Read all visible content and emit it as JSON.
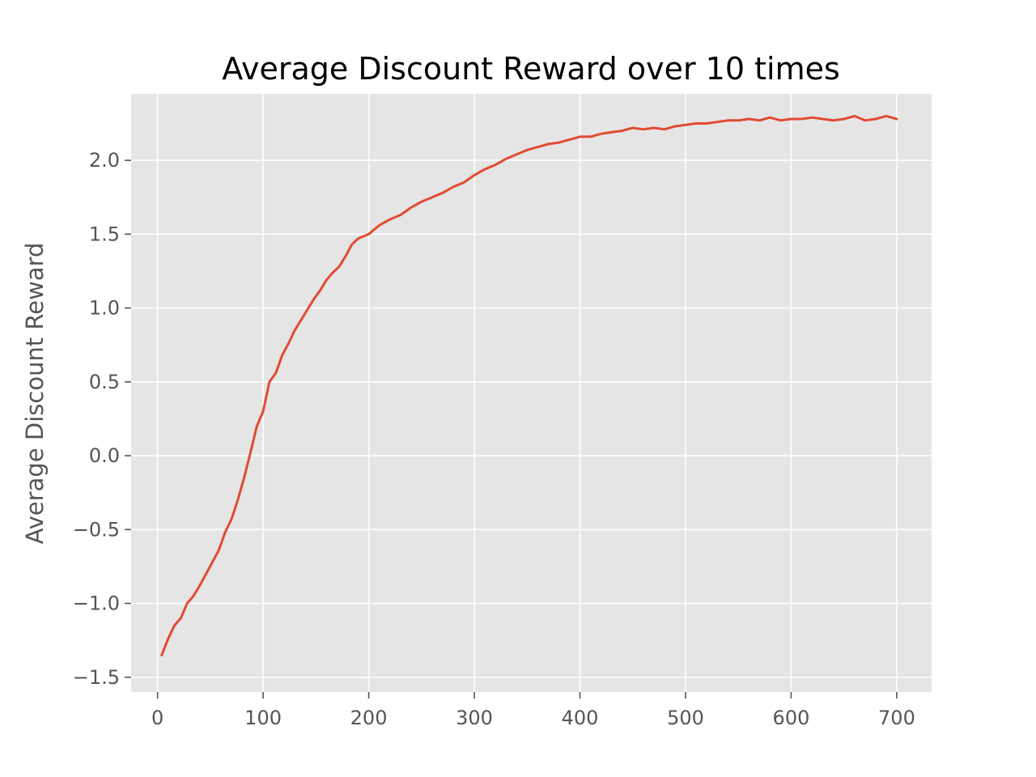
{
  "chart_data": {
    "type": "line",
    "title": "Average Discount Reward over 10 times",
    "xlabel": "",
    "ylabel": "Average Discount Reward",
    "xlim": [
      -25,
      733
    ],
    "ylim": [
      -1.6,
      2.45
    ],
    "grid": true,
    "legend": "none",
    "x_ticks": [
      0,
      100,
      200,
      300,
      400,
      500,
      600,
      700
    ],
    "x_tick_labels": [
      "0",
      "100",
      "200",
      "300",
      "400",
      "500",
      "600",
      "700"
    ],
    "y_ticks": [
      -1.5,
      -1.0,
      -0.5,
      0.0,
      0.5,
      1.0,
      1.5,
      2.0
    ],
    "y_tick_labels": [
      "−1.5",
      "−1.0",
      "−0.5",
      "0.0",
      "0.5",
      "1.0",
      "1.5",
      "2.0"
    ],
    "colors": {
      "line": "#E24A33",
      "plot_bg": "#E5E5E5",
      "grid": "#FFFFFF",
      "tick_text": "#555555"
    },
    "series": [
      {
        "x": [
          4,
          10,
          16,
          22,
          28,
          34,
          40,
          46,
          52,
          58,
          64,
          70,
          76,
          82,
          88,
          94,
          100,
          106,
          112,
          118,
          124,
          130,
          136,
          142,
          148,
          154,
          160,
          166,
          172,
          178,
          184,
          190,
          200,
          210,
          220,
          230,
          240,
          250,
          260,
          270,
          280,
          290,
          300,
          310,
          320,
          330,
          340,
          350,
          360,
          370,
          380,
          390,
          400,
          410,
          420,
          430,
          440,
          450,
          460,
          470,
          480,
          490,
          500,
          510,
          520,
          530,
          540,
          550,
          560,
          570,
          580,
          590,
          600,
          610,
          620,
          630,
          640,
          650,
          660,
          670,
          680,
          690,
          700
        ],
        "y": [
          -1.35,
          -1.24,
          -1.15,
          -1.1,
          -1.0,
          -0.95,
          -0.88,
          -0.8,
          -0.72,
          -0.64,
          -0.52,
          -0.43,
          -0.3,
          -0.15,
          0.02,
          0.2,
          0.3,
          0.5,
          0.56,
          0.68,
          0.76,
          0.85,
          0.92,
          0.99,
          1.06,
          1.12,
          1.19,
          1.24,
          1.28,
          1.35,
          1.43,
          1.47,
          1.5,
          1.56,
          1.6,
          1.63,
          1.68,
          1.72,
          1.75,
          1.78,
          1.82,
          1.85,
          1.9,
          1.94,
          1.97,
          2.01,
          2.04,
          2.07,
          2.09,
          2.11,
          2.12,
          2.14,
          2.16,
          2.16,
          2.18,
          2.19,
          2.2,
          2.22,
          2.21,
          2.22,
          2.21,
          2.23,
          2.24,
          2.25,
          2.25,
          2.26,
          2.27,
          2.27,
          2.28,
          2.27,
          2.29,
          2.27,
          2.28,
          2.28,
          2.29,
          2.28,
          2.27,
          2.28,
          2.3,
          2.27,
          2.28,
          2.3,
          2.28
        ]
      }
    ]
  }
}
